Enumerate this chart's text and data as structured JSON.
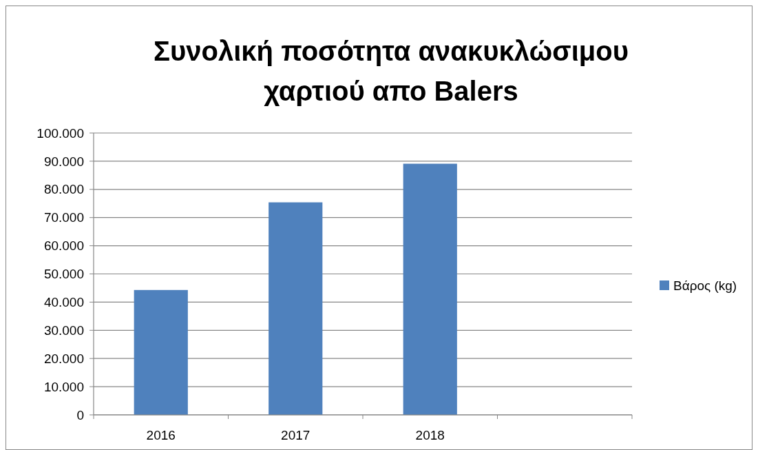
{
  "chart_data": {
    "type": "bar",
    "title": "Συνολική ποσότητα ανακυκλώσιμου χαρτιού απο Balers",
    "categories": [
      "2016",
      "2017",
      "2018",
      null
    ],
    "series": [
      {
        "name": "Βάρος (kg)",
        "color": "#4f81bd",
        "values": [
          44300,
          75400,
          89100,
          null
        ]
      }
    ],
    "ylim": [
      0,
      100000
    ],
    "yticks": [
      {
        "value": 0,
        "label": "0"
      },
      {
        "value": 10000,
        "label": "10.000"
      },
      {
        "value": 20000,
        "label": "20.000"
      },
      {
        "value": 30000,
        "label": "30.000"
      },
      {
        "value": 40000,
        "label": "40.000"
      },
      {
        "value": 50000,
        "label": "50.000"
      },
      {
        "value": 60000,
        "label": "60.000"
      },
      {
        "value": 70000,
        "label": "70.000"
      },
      {
        "value": 80000,
        "label": "80.000"
      },
      {
        "value": 90000,
        "label": "90.000"
      },
      {
        "value": 100000,
        "label": "100.000"
      }
    ],
    "grid": "y",
    "legend": "right"
  }
}
